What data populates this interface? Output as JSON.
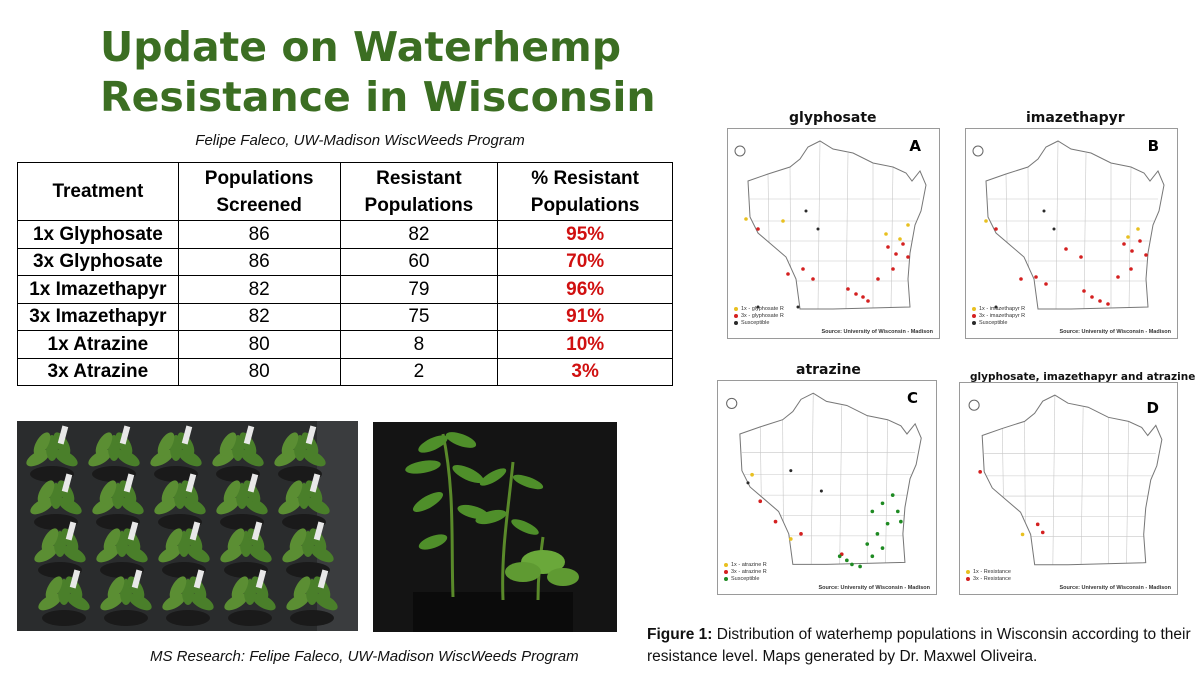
{
  "header": {
    "title_line1": "Update on Waterhemp",
    "title_line2": "Resistance in Wisconsin",
    "subtitle": "Felipe Faleco, UW-Madison WiscWeeds Program"
  },
  "table": {
    "headers": [
      [
        "Treatment"
      ],
      [
        "Populations",
        "Screened"
      ],
      [
        "Resistant",
        "Populations"
      ],
      [
        "% Resistant",
        "Populations"
      ]
    ],
    "rows": [
      {
        "treatment": "1x Glyphosate",
        "screened": "86",
        "resistant": "82",
        "pct": "95%"
      },
      {
        "treatment": "3x Glyphosate",
        "screened": "86",
        "resistant": "60",
        "pct": "70%"
      },
      {
        "treatment": "1x Imazethapyr",
        "screened": "82",
        "resistant": "79",
        "pct": "96%"
      },
      {
        "treatment": "3x Imazethapyr",
        "screened": "82",
        "resistant": "75",
        "pct": "91%"
      },
      {
        "treatment": "1x Atrazine",
        "screened": "80",
        "resistant": "8",
        "pct": "10%"
      },
      {
        "treatment": "3x Atrazine",
        "screened": "80",
        "resistant": "2",
        "pct": "3%"
      }
    ]
  },
  "photos": {
    "caption": "MS Research: Felipe Faleco, UW-Madison WiscWeeds Program"
  },
  "maps": {
    "source": "Source: University of Wisconsin - Madison",
    "colors": {
      "one_x": "#e8c020",
      "three_x": "#d42020",
      "susceptible": "#2a2a2a",
      "atr_susceptible": "#1e8a22"
    },
    "panels": [
      {
        "title": "glyphosate",
        "letter": "A",
        "legend": [
          "1x - glyphosate R",
          "3x - glyphosate R",
          "Susceptible"
        ]
      },
      {
        "title": "imazethapyr",
        "letter": "B",
        "legend": [
          "1x - imazethapyr R",
          "3x - imazethapyr R",
          "Susceptible"
        ]
      },
      {
        "title": "atrazine",
        "letter": "C",
        "legend": [
          "1x - atrazine R",
          "3x - atrazine R",
          "Susceptible"
        ]
      },
      {
        "title": "glyphosate, imazethapyr and atrazine",
        "letter": "D",
        "legend": [
          "1x - Resistance",
          "3x - Resistance"
        ]
      }
    ]
  },
  "figure": {
    "label": "Figure 1:",
    "text": " Distribution of waterhemp populations in Wisconsin according to their resistance level. Maps generated by Dr. Maxwel Oliveira."
  }
}
